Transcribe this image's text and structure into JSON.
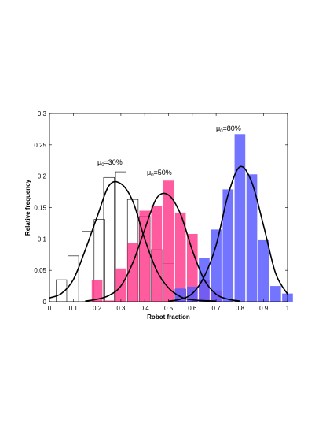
{
  "chart_data": {
    "type": "bar",
    "title": "",
    "xlabel": "Robot fraction",
    "ylabel": "Relative frequency",
    "xlim": [
      0,
      1
    ],
    "ylim": [
      0,
      0.3
    ],
    "xticks": [
      "0",
      "0.1",
      "0.2",
      "0.3",
      "0.4",
      "0.5",
      "0.6",
      "0.7",
      "0.8",
      "0.9",
      "1"
    ],
    "yticks": [
      "0",
      "0.05",
      "0.1",
      "0.15",
      "0.2",
      "0.25",
      "0.3"
    ],
    "grid": false,
    "series": [
      {
        "key": "mu30",
        "annotation": {
          "prefix": "μ",
          "sub": "0",
          "suffix": "=30%"
        },
        "color": "#000000",
        "bars": [
          {
            "x": 0.05,
            "y": 0.035
          },
          {
            "x": 0.1,
            "y": 0.073
          },
          {
            "x": 0.16,
            "y": 0.112
          },
          {
            "x": 0.21,
            "y": 0.131
          },
          {
            "x": 0.25,
            "y": 0.198
          },
          {
            "x": 0.3,
            "y": 0.207
          },
          {
            "x": 0.35,
            "y": 0.163
          },
          {
            "x": 0.4,
            "y": 0.136
          },
          {
            "x": 0.45,
            "y": 0.083
          },
          {
            "x": 0.5,
            "y": 0.061
          },
          {
            "x": 0.55,
            "y": 0.02
          }
        ],
        "curve": [
          {
            "x": 0.0,
            "y": 0.006
          },
          {
            "x": 0.05,
            "y": 0.013
          },
          {
            "x": 0.1,
            "y": 0.035
          },
          {
            "x": 0.15,
            "y": 0.082
          },
          {
            "x": 0.2,
            "y": 0.135
          },
          {
            "x": 0.25,
            "y": 0.185
          },
          {
            "x": 0.3,
            "y": 0.188
          },
          {
            "x": 0.35,
            "y": 0.16
          },
          {
            "x": 0.4,
            "y": 0.1
          },
          {
            "x": 0.45,
            "y": 0.05
          },
          {
            "x": 0.5,
            "y": 0.022
          },
          {
            "x": 0.55,
            "y": 0.008
          },
          {
            "x": 0.6,
            "y": 0.003
          },
          {
            "x": 0.7,
            "y": 0.001
          }
        ]
      },
      {
        "key": "mu50",
        "annotation": {
          "prefix": "μ",
          "sub": "0",
          "suffix": "=50%"
        },
        "color": "#ff3f8f",
        "bars": [
          {
            "x": 0.2,
            "y": 0.035
          },
          {
            "x": 0.25,
            "y": 0.002
          },
          {
            "x": 0.3,
            "y": 0.053
          },
          {
            "x": 0.35,
            "y": 0.093
          },
          {
            "x": 0.4,
            "y": 0.145
          },
          {
            "x": 0.45,
            "y": 0.153
          },
          {
            "x": 0.5,
            "y": 0.193
          },
          {
            "x": 0.55,
            "y": 0.142
          },
          {
            "x": 0.6,
            "y": 0.108
          },
          {
            "x": 0.65,
            "y": 0.035
          },
          {
            "x": 0.7,
            "y": 0.018
          }
        ],
        "curve": [
          {
            "x": 0.15,
            "y": 0.001
          },
          {
            "x": 0.2,
            "y": 0.004
          },
          {
            "x": 0.25,
            "y": 0.01
          },
          {
            "x": 0.3,
            "y": 0.025
          },
          {
            "x": 0.35,
            "y": 0.062
          },
          {
            "x": 0.4,
            "y": 0.115
          },
          {
            "x": 0.45,
            "y": 0.165
          },
          {
            "x": 0.5,
            "y": 0.17
          },
          {
            "x": 0.55,
            "y": 0.14
          },
          {
            "x": 0.6,
            "y": 0.082
          },
          {
            "x": 0.65,
            "y": 0.035
          },
          {
            "x": 0.7,
            "y": 0.012
          },
          {
            "x": 0.75,
            "y": 0.004
          },
          {
            "x": 0.8,
            "y": 0.001
          }
        ]
      },
      {
        "key": "mu80",
        "annotation": {
          "prefix": "μ",
          "sub": "0",
          "suffix": "=80%"
        },
        "color": "#5a5cff",
        "bars": [
          {
            "x": 0.55,
            "y": 0.021
          },
          {
            "x": 0.6,
            "y": 0.024
          },
          {
            "x": 0.65,
            "y": 0.07
          },
          {
            "x": 0.7,
            "y": 0.115
          },
          {
            "x": 0.75,
            "y": 0.179
          },
          {
            "x": 0.8,
            "y": 0.267
          },
          {
            "x": 0.85,
            "y": 0.203
          },
          {
            "x": 0.9,
            "y": 0.098
          },
          {
            "x": 0.95,
            "y": 0.025
          },
          {
            "x": 1.0,
            "y": 0.013
          }
        ],
        "curve": [
          {
            "x": 0.5,
            "y": 0.001
          },
          {
            "x": 0.55,
            "y": 0.004
          },
          {
            "x": 0.6,
            "y": 0.013
          },
          {
            "x": 0.65,
            "y": 0.04
          },
          {
            "x": 0.7,
            "y": 0.09
          },
          {
            "x": 0.75,
            "y": 0.17
          },
          {
            "x": 0.8,
            "y": 0.215
          },
          {
            "x": 0.85,
            "y": 0.19
          },
          {
            "x": 0.9,
            "y": 0.12
          },
          {
            "x": 0.95,
            "y": 0.045
          },
          {
            "x": 1.0,
            "y": 0.012
          }
        ]
      }
    ]
  }
}
